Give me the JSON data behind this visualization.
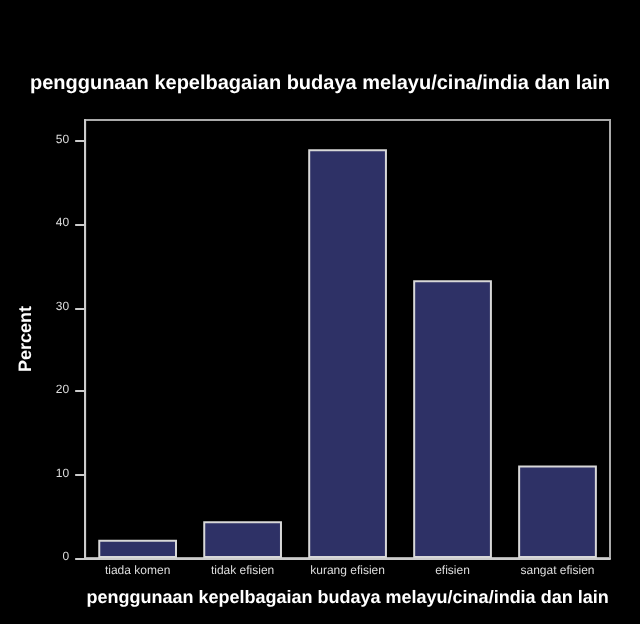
{
  "chart_data": {
    "type": "bar",
    "title": "penggunaan kepelbagaian budaya melayu/cina/india dan lain",
    "xlabel": "penggunaan kepelbagaian budaya melayu/cina/india dan lain",
    "ylabel": "Percent",
    "categories": [
      "tiada komen",
      "tidak efisien",
      "kurang efisien",
      "efisien",
      "sangat efisien"
    ],
    "values": [
      2.2,
      4.4,
      49.0,
      33.3,
      11.1
    ],
    "color": "#2e3166",
    "ylim": [
      0,
      52.5
    ],
    "yticks": [
      0,
      10,
      20,
      30,
      40,
      50
    ],
    "grid": false
  }
}
